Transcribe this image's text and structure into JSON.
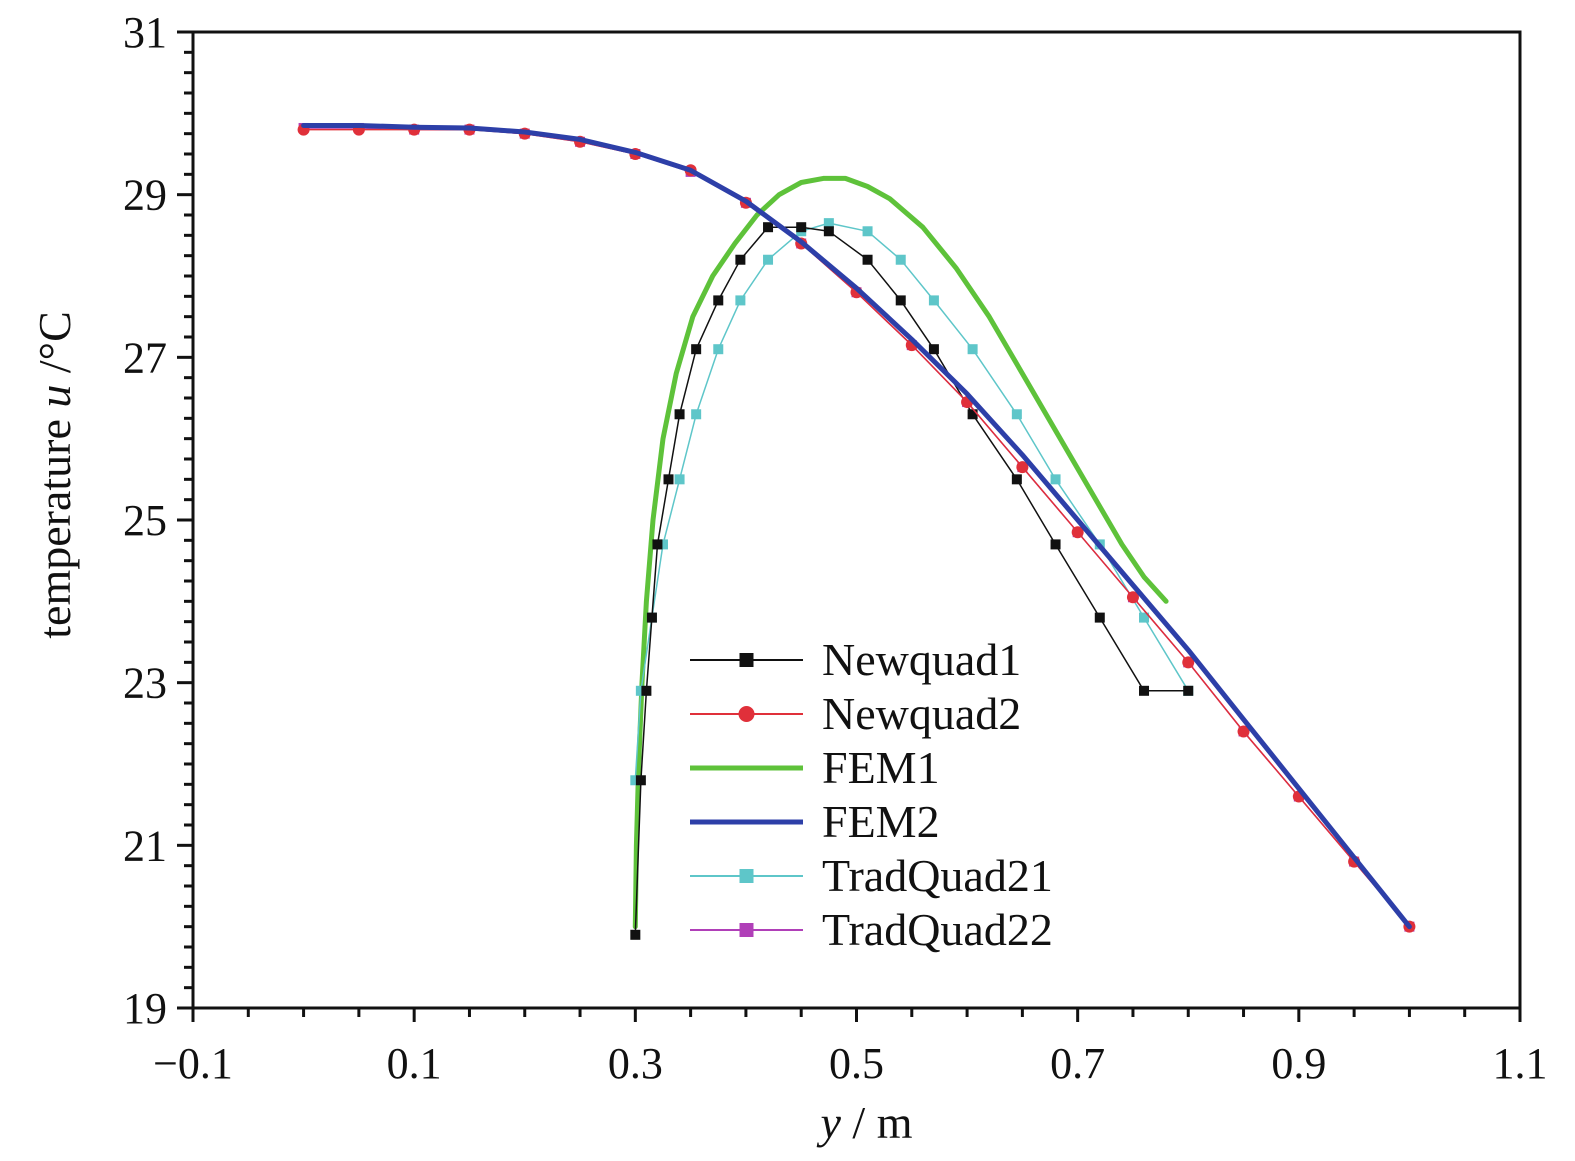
{
  "chart_data": {
    "type": "line",
    "xlabel_var": "y",
    "xlabel_unit": "/ m",
    "ylabel_prefix": "temperature ",
    "ylabel_var": "u",
    "ylabel_unit": " /°C",
    "xlim": [
      -0.1,
      1.1
    ],
    "ylim": [
      19,
      31
    ],
    "xticks": [
      -0.1,
      0.1,
      0.3,
      0.5,
      0.7,
      0.9,
      1.1
    ],
    "xtick_labels": [
      "−0.1",
      "0.1",
      "0.3",
      "0.5",
      "0.7",
      "0.9",
      "1.1"
    ],
    "yticks": [
      19,
      21,
      23,
      25,
      27,
      29,
      31
    ],
    "ytick_labels": [
      "19",
      "21",
      "23",
      "25",
      "27",
      "29",
      "31"
    ],
    "grid": false,
    "legend_position": "bottom-center",
    "series": [
      {
        "name": "Newquad1",
        "color": "#111111",
        "marker": "square",
        "line_width": 1.5,
        "x": [
          0.3,
          0.305,
          0.31,
          0.315,
          0.32,
          0.33,
          0.34,
          0.355,
          0.375,
          0.395,
          0.42,
          0.45,
          0.475,
          0.51,
          0.54,
          0.57,
          0.605,
          0.645,
          0.68,
          0.72,
          0.76,
          0.8
        ],
        "y": [
          19.9,
          21.8,
          22.9,
          23.8,
          24.7,
          25.5,
          26.3,
          27.1,
          27.7,
          28.2,
          28.6,
          28.6,
          28.55,
          28.2,
          27.7,
          27.1,
          26.3,
          25.5,
          24.7,
          23.8,
          22.9,
          22.9
        ]
      },
      {
        "name": "Newquad2",
        "color": "#e0303a",
        "marker": "circle",
        "line_width": 1.5,
        "x": [
          0.0,
          0.05,
          0.1,
          0.15,
          0.2,
          0.25,
          0.3,
          0.35,
          0.4,
          0.45,
          0.5,
          0.55,
          0.6,
          0.65,
          0.7,
          0.75,
          0.8,
          0.85,
          0.9,
          0.95,
          1.0
        ],
        "y": [
          29.8,
          29.8,
          29.8,
          29.8,
          29.75,
          29.65,
          29.5,
          29.3,
          28.9,
          28.4,
          27.8,
          27.15,
          26.45,
          25.65,
          24.85,
          24.05,
          23.25,
          22.4,
          21.6,
          20.8,
          20.0
        ]
      },
      {
        "name": "FEM1",
        "color": "#5ec23a",
        "marker": "none",
        "line_width": 5,
        "x": [
          0.3,
          0.301,
          0.303,
          0.306,
          0.31,
          0.316,
          0.325,
          0.337,
          0.352,
          0.37,
          0.39,
          0.41,
          0.43,
          0.45,
          0.47,
          0.49,
          0.51,
          0.53,
          0.56,
          0.59,
          0.62,
          0.65,
          0.68,
          0.71,
          0.74,
          0.76,
          0.78
        ],
        "y": [
          20.0,
          21.0,
          22.0,
          23.0,
          24.0,
          25.0,
          26.0,
          26.8,
          27.5,
          28.0,
          28.4,
          28.75,
          29.0,
          29.15,
          29.2,
          29.2,
          29.1,
          28.95,
          28.6,
          28.1,
          27.5,
          26.8,
          26.1,
          25.4,
          24.7,
          24.3,
          24.0
        ]
      },
      {
        "name": "FEM2",
        "color": "#2d3fa8",
        "marker": "none",
        "line_width": 5,
        "x": [
          0.0,
          0.05,
          0.1,
          0.15,
          0.2,
          0.25,
          0.3,
          0.35,
          0.4,
          0.45,
          0.5,
          0.55,
          0.6,
          0.65,
          0.7,
          0.75,
          0.8,
          0.85,
          0.9,
          0.95,
          1.0
        ],
        "y": [
          29.85,
          29.85,
          29.83,
          29.82,
          29.77,
          29.68,
          29.52,
          29.3,
          28.92,
          28.42,
          27.85,
          27.22,
          26.55,
          25.8,
          25.0,
          24.2,
          23.4,
          22.55,
          21.7,
          20.85,
          20.0
        ]
      },
      {
        "name": "TradQuad21",
        "color": "#5ec6c9",
        "marker": "square",
        "line_width": 1.5,
        "x": [
          0.3,
          0.305,
          0.315,
          0.325,
          0.34,
          0.355,
          0.375,
          0.395,
          0.42,
          0.45,
          0.475,
          0.51,
          0.54,
          0.57,
          0.605,
          0.645,
          0.68,
          0.72,
          0.76,
          0.8
        ],
        "y": [
          21.8,
          22.9,
          23.8,
          24.7,
          25.5,
          26.3,
          27.1,
          27.7,
          28.2,
          28.55,
          28.65,
          28.55,
          28.2,
          27.7,
          27.1,
          26.3,
          25.5,
          24.7,
          23.8,
          22.9
        ]
      },
      {
        "name": "TradQuad22",
        "color": "#b03fb8",
        "marker": "square",
        "line_width": 1.5,
        "x": [
          0.0,
          0.05,
          0.1,
          0.15,
          0.2,
          0.25,
          0.3,
          0.35,
          0.4,
          0.45,
          0.5,
          0.55,
          0.6,
          0.65,
          0.7,
          0.75,
          0.8,
          0.85,
          0.9,
          0.95,
          1.0
        ],
        "y": [
          29.82,
          29.82,
          29.8,
          29.8,
          29.75,
          29.65,
          29.5,
          29.28,
          28.9,
          28.4,
          27.8,
          27.15,
          26.45,
          25.65,
          24.85,
          24.05,
          23.25,
          22.4,
          21.6,
          20.8,
          20.0
        ]
      }
    ]
  }
}
